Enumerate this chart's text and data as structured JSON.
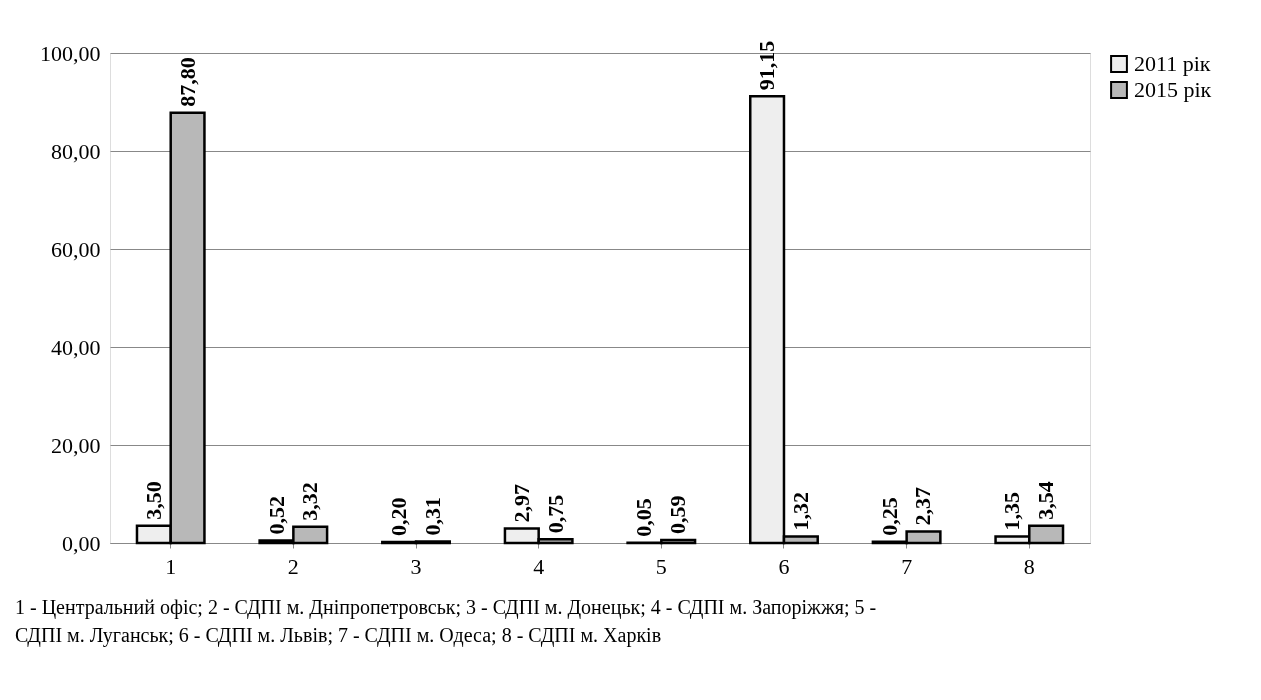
{
  "chart_data": {
    "type": "bar",
    "categories": [
      "1",
      "2",
      "3",
      "4",
      "5",
      "6",
      "7",
      "8"
    ],
    "series": [
      {
        "name": "2011 рік",
        "color": "#eeeeee",
        "values": [
          3.5,
          0.52,
          0.2,
          2.97,
          0.05,
          91.15,
          0.25,
          1.35
        ],
        "value_labels": [
          "3,50",
          "0,52",
          "0,20",
          "2,97",
          "0,05",
          "91,15",
          "0,25",
          "1,35"
        ]
      },
      {
        "name": "2015 рік",
        "color": "#b8b8b8",
        "values": [
          87.8,
          3.32,
          0.31,
          0.75,
          0.59,
          1.32,
          2.37,
          3.54
        ],
        "value_labels": [
          "87,80",
          "3,32",
          "0,31",
          "0,75",
          "0,59",
          "1,32",
          "2,37",
          "3,54"
        ]
      }
    ],
    "ylim": [
      0,
      100
    ],
    "yticks": [
      {
        "value": 0,
        "label": "0,00"
      },
      {
        "value": 20,
        "label": "20,00"
      },
      {
        "value": 40,
        "label": "40,00"
      },
      {
        "value": 60,
        "label": "60,00"
      },
      {
        "value": 80,
        "label": "80,00"
      },
      {
        "value": 100,
        "label": "100,00"
      }
    ],
    "grid": "y",
    "legend": "right",
    "annotations": [
      "1 - Центральний офіс; 2 - СДПІ м. Дніпропетровськ; 3 - СДПІ м. Донецьк; 4 - СДПІ м. Запоріжжя; 5 - СДПІ м. Луганськ; 6 - СДПІ м. Львів; 7 - СДПІ м. Одеса; 8 - СДПІ м. Харків"
    ]
  }
}
